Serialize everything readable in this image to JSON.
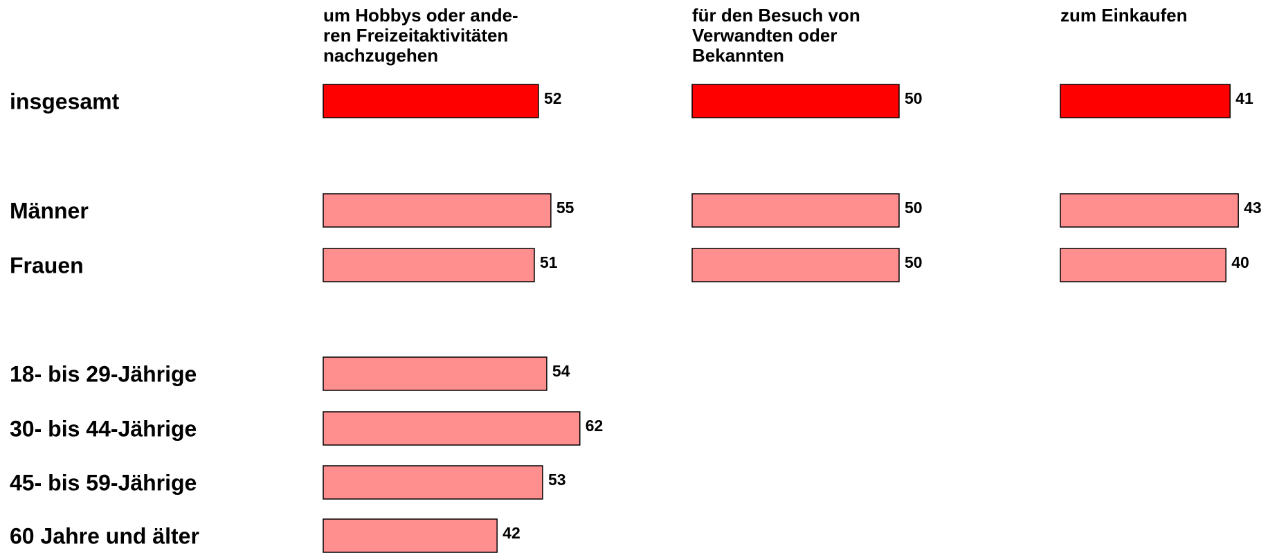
{
  "chart_data": {
    "type": "bar",
    "categories": [
      "insgesamt",
      "Männer",
      "Frauen",
      "18- bis 29-Jährige",
      "30- bis 44-Jährige",
      "45- bis 59-Jährige",
      "60 Jahre und älter"
    ],
    "colors": [
      "#ff0000",
      "#ff8f8f",
      "#ff8f8f",
      "#ff8f8f",
      "#ff8f8f",
      "#ff8f8f",
      "#ff8f8f"
    ],
    "series": [
      {
        "name": "um Hobbys oder ande-\nren Freizeitaktivitäten\nnachzugehen",
        "values": [
          52,
          55,
          51,
          54,
          62,
          53,
          42
        ]
      },
      {
        "name": "für den Besuch von\nVerwandten oder\nBekannten",
        "values": [
          50,
          50,
          50,
          null,
          null,
          null,
          null
        ]
      },
      {
        "name": "zum Einkaufen",
        "values": [
          41,
          43,
          40,
          null,
          null,
          null,
          null
        ]
      }
    ]
  }
}
